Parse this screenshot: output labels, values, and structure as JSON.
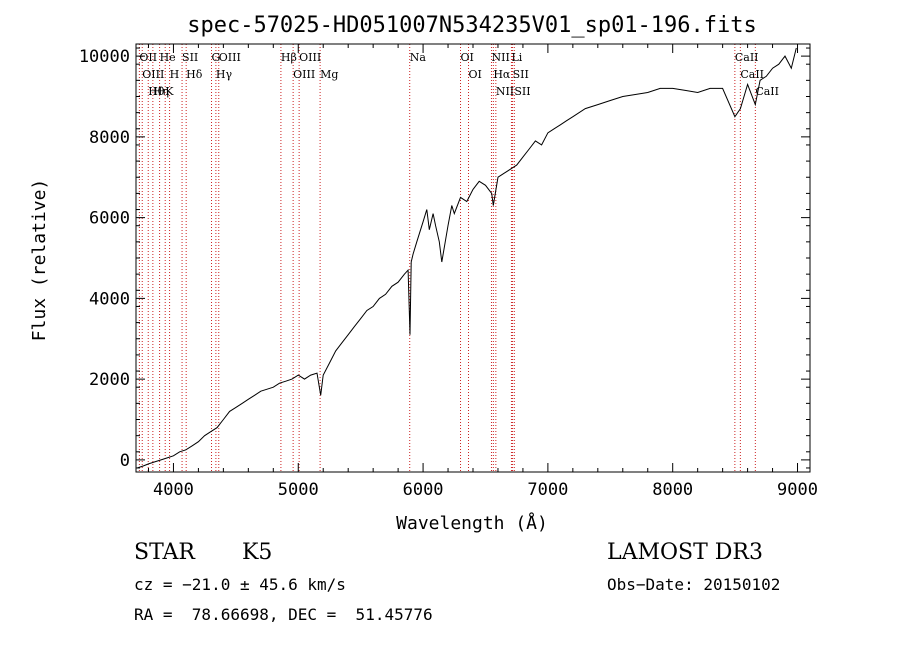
{
  "chart_data": {
    "type": "line",
    "title": "spec-57025-HD051007N534235V01_sp01-196.fits",
    "xlabel": "Wavelength (Å)",
    "ylabel": "Flux (relative)",
    "xlim": [
      3700,
      9100
    ],
    "ylim": [
      -300,
      10300
    ],
    "xticks": [
      4000,
      5000,
      6000,
      7000,
      8000,
      9000
    ],
    "yticks": [
      0,
      2000,
      4000,
      6000,
      8000,
      10000
    ],
    "line_color": "#000000",
    "marker_color": "#cc2222",
    "series": [
      {
        "name": "flux",
        "x": [
          3710,
          3760,
          3800,
          3850,
          3900,
          3950,
          4000,
          4050,
          4100,
          4150,
          4200,
          4250,
          4300,
          4350,
          4400,
          4450,
          4500,
          4550,
          4600,
          4650,
          4700,
          4750,
          4800,
          4850,
          4900,
          4950,
          5000,
          5050,
          5100,
          5150,
          5180,
          5200,
          5250,
          5300,
          5350,
          5400,
          5450,
          5500,
          5550,
          5600,
          5650,
          5700,
          5750,
          5800,
          5850,
          5880,
          5895,
          5905,
          5920,
          5950,
          6000,
          6030,
          6050,
          6080,
          6100,
          6130,
          6150,
          6200,
          6230,
          6250,
          6300,
          6350,
          6400,
          6450,
          6500,
          6550,
          6563,
          6600,
          6650,
          6700,
          6750,
          6800,
          6850,
          6900,
          6950,
          7000,
          7050,
          7100,
          7150,
          7200,
          7300,
          7400,
          7500,
          7600,
          7700,
          7800,
          7900,
          8000,
          8100,
          8200,
          8300,
          8400,
          8498,
          8542,
          8600,
          8662,
          8700,
          8750,
          8800,
          8850,
          8900,
          8950,
          8990
        ],
        "y": [
          -200,
          -150,
          -100,
          -50,
          0,
          50,
          100,
          200,
          250,
          350,
          450,
          600,
          700,
          800,
          1000,
          1200,
          1300,
          1400,
          1500,
          1600,
          1700,
          1750,
          1800,
          1900,
          1950,
          2000,
          2100,
          2000,
          2100,
          2150,
          1600,
          2100,
          2400,
          2700,
          2900,
          3100,
          3300,
          3500,
          3700,
          3800,
          4000,
          4100,
          4300,
          4400,
          4600,
          4700,
          3100,
          4900,
          5100,
          5400,
          5900,
          6200,
          5700,
          6100,
          5800,
          5400,
          4900,
          5800,
          6300,
          6100,
          6500,
          6400,
          6700,
          6900,
          6800,
          6600,
          6300,
          7000,
          7100,
          7200,
          7300,
          7500,
          7700,
          7900,
          7800,
          8100,
          8200,
          8300,
          8400,
          8500,
          8700,
          8800,
          8900,
          9000,
          9050,
          9100,
          9200,
          9200,
          9150,
          9100,
          9200,
          9200,
          8500,
          8700,
          9300,
          8800,
          9400,
          9500,
          9700,
          9800,
          10000,
          9700,
          10200
        ]
      }
    ],
    "lines": [
      {
        "label": "Hθ",
        "x": 3798
      },
      {
        "label": "OII",
        "x": 3727
      },
      {
        "label": "OIII",
        "x": 3750
      },
      {
        "label": "K",
        "x": 3934
      },
      {
        "label": "H",
        "x": 3969
      },
      {
        "label": "He",
        "x": 3889
      },
      {
        "label": "Hη",
        "x": 3835
      },
      {
        "label": "SII",
        "x": 4069
      },
      {
        "label": "Hδ",
        "x": 4102
      },
      {
        "label": "OIII",
        "x": 4363
      },
      {
        "label": "Hγ",
        "x": 4340
      },
      {
        "label": "G",
        "x": 4305
      },
      {
        "label": "Hβ",
        "x": 4861
      },
      {
        "label": "OIII",
        "x": 4959
      },
      {
        "label": "OIII",
        "x": 5007
      },
      {
        "label": "Mg",
        "x": 5175
      },
      {
        "label": "Na",
        "x": 5893
      },
      {
        "label": "OI",
        "x": 6300
      },
      {
        "label": "OI",
        "x": 6364
      },
      {
        "label": "Hα",
        "x": 6563
      },
      {
        "label": "NII",
        "x": 6548
      },
      {
        "label": "NII",
        "x": 6583
      },
      {
        "label": "SII",
        "x": 6717
      },
      {
        "label": "SII",
        "x": 6731
      },
      {
        "label": "Li",
        "x": 6708
      },
      {
        "label": "CaII",
        "x": 8498
      },
      {
        "label": "CaII",
        "x": 8542
      },
      {
        "label": "CaII",
        "x": 8662
      }
    ]
  },
  "footer": {
    "object_class": "STAR",
    "subclass": "K5",
    "survey": "LAMOST DR3",
    "cz": "cz = −21.0 ± 45.6 km/s",
    "obs_date": "Obs−Date: 20150102",
    "coords": "RA =  78.66698, DEC =  51.45776"
  }
}
